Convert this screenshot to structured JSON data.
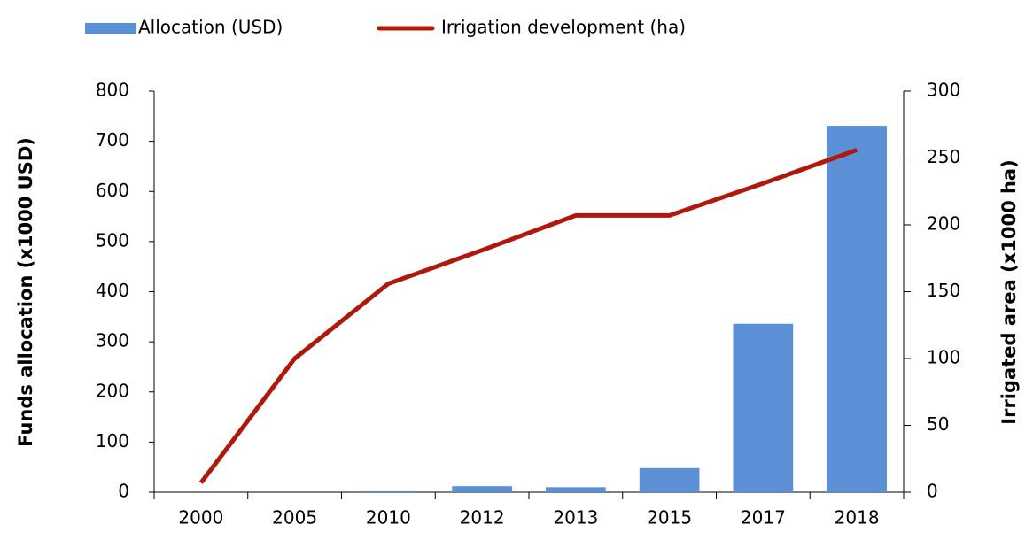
{
  "chart_data": {
    "type": "bar_line",
    "categories": [
      "2000",
      "2005",
      "2010",
      "2012",
      "2013",
      "2015",
      "2017",
      "2018"
    ],
    "series": [
      {
        "name": "Allocation (USD)",
        "color": "#5b8fd6",
        "type": "bar",
        "axis": "y",
        "values": [
          0,
          0,
          2,
          12,
          10,
          48,
          336,
          731
        ]
      },
      {
        "name": "Irrigation development (ha)",
        "color": "#b0180c",
        "type": "line",
        "axis": "y2",
        "values": [
          7,
          100,
          156,
          181,
          207,
          207,
          231,
          256
        ]
      }
    ],
    "ylabel": "Funds allocation (x1000 USD)",
    "y2label": "Irrigated area (x1000 ha)",
    "ylim": [
      0,
      800
    ],
    "yticks": [
      0,
      100,
      200,
      300,
      400,
      500,
      600,
      700,
      800
    ],
    "y2lim": [
      0,
      300
    ],
    "y2ticks": [
      0,
      50,
      100,
      150,
      200,
      250,
      300
    ],
    "legend": "top"
  }
}
